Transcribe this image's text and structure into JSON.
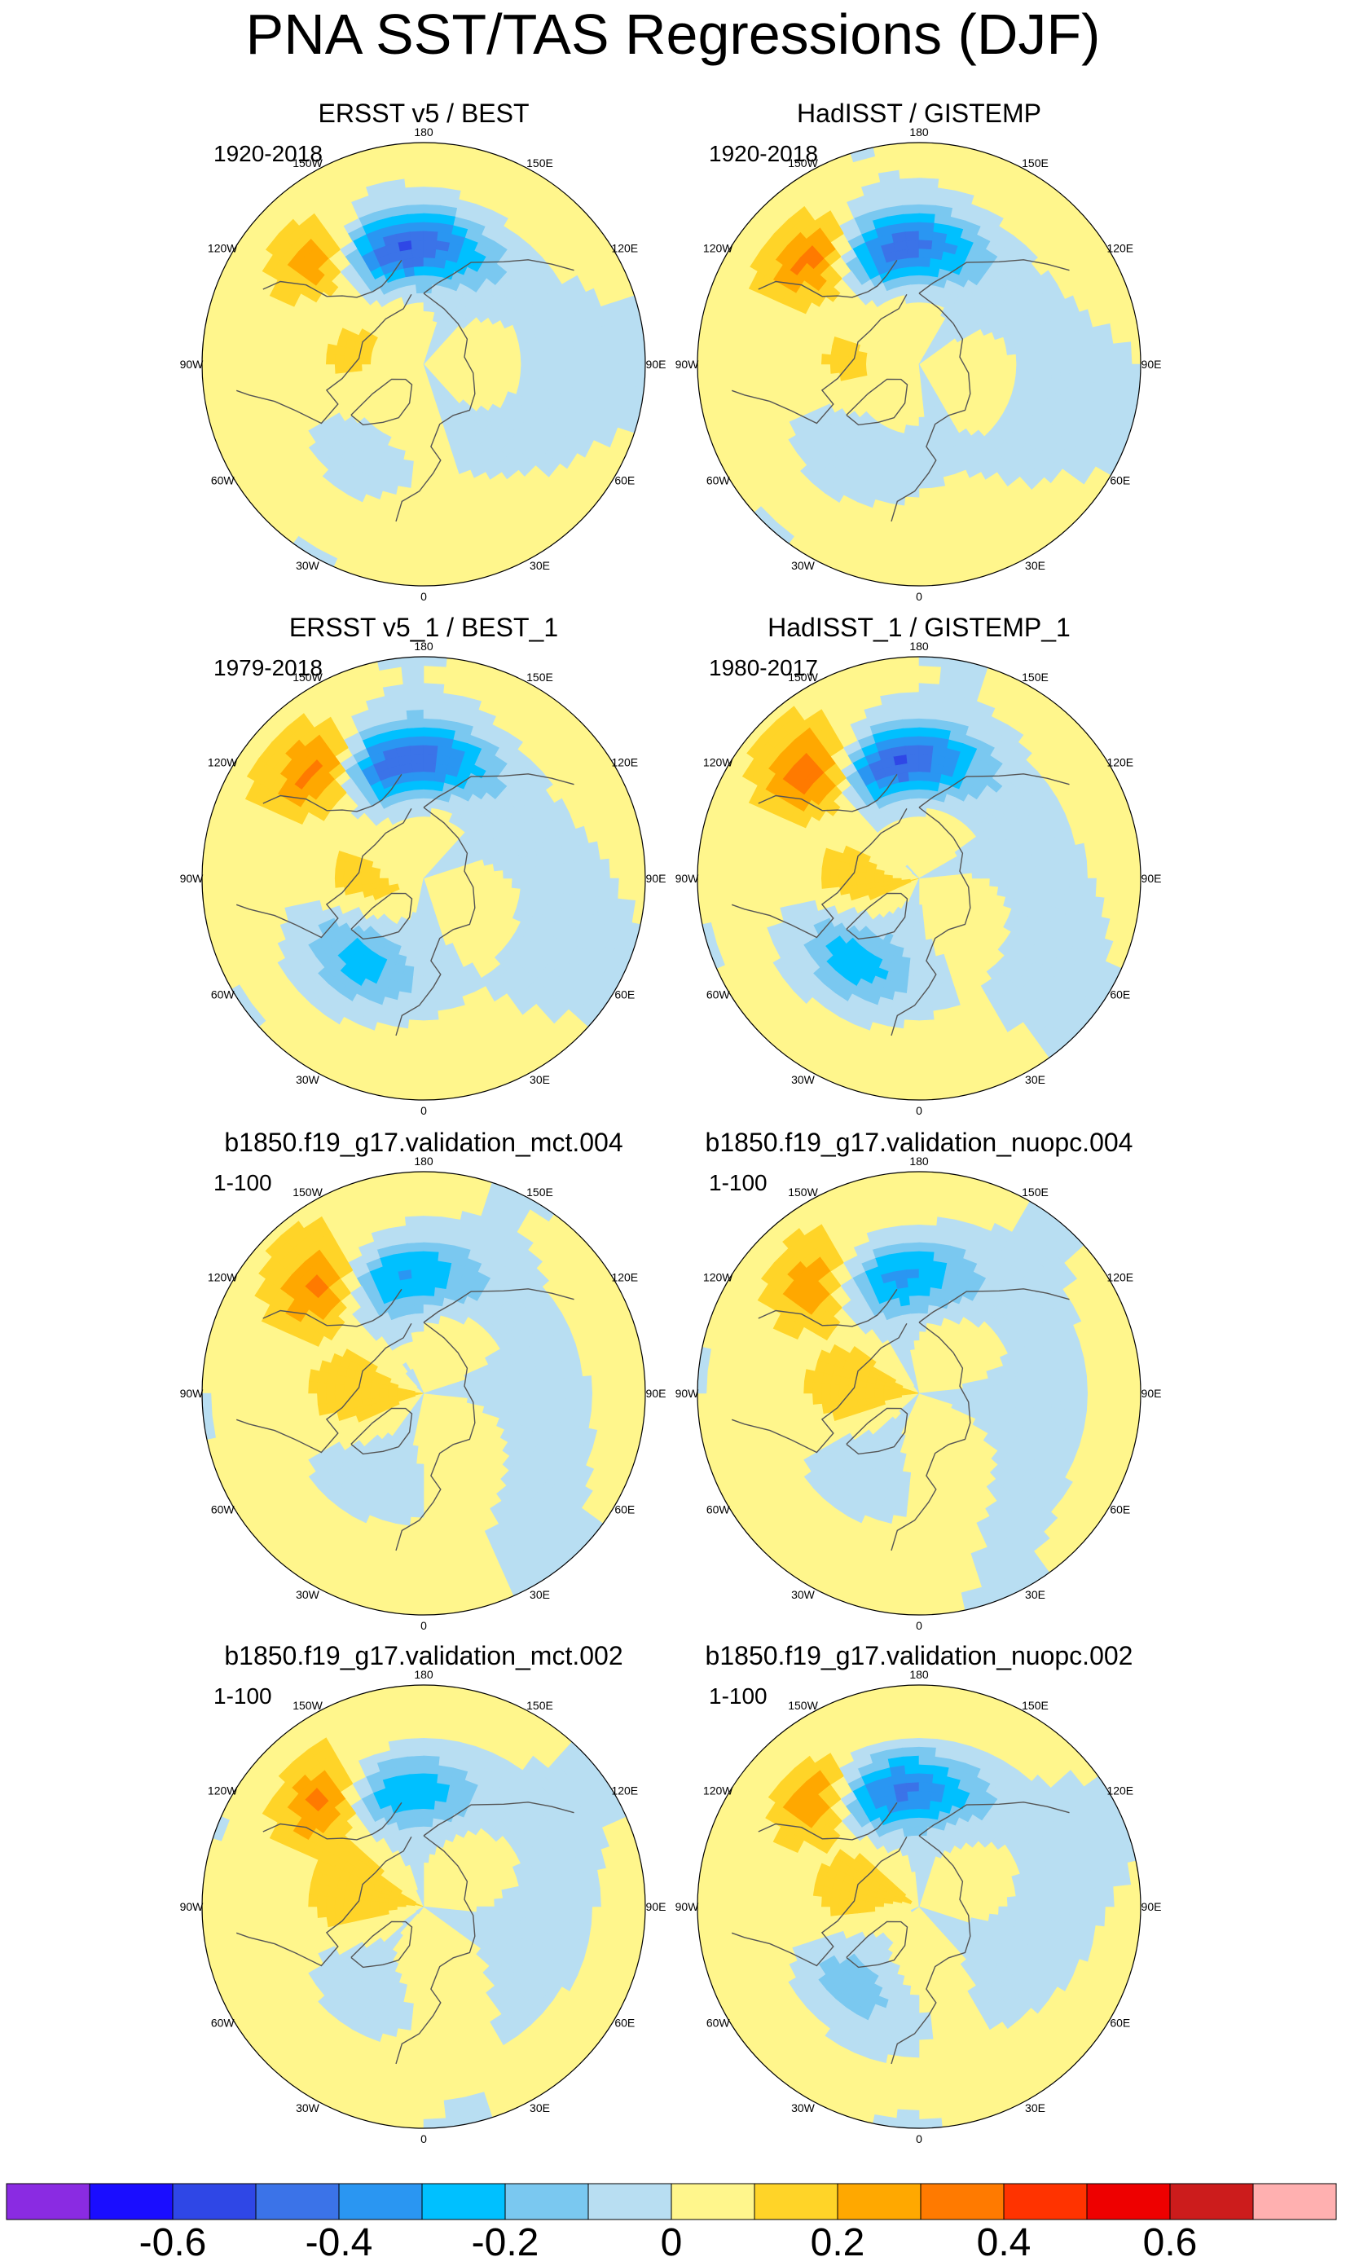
{
  "figure": {
    "title": "PNA SST/TAS Regressions (DJF)"
  },
  "chart_data": [
    {
      "type": "heatmap",
      "projection": "north-polar-stereographic",
      "title": "ERSST v5 / BEST",
      "period": "1920-2018",
      "lon_labels": [
        "180",
        "150E",
        "120E",
        "90E",
        "60E",
        "30E",
        "0",
        "30W",
        "60W",
        "90W",
        "120W",
        "150W"
      ],
      "features": {
        "aleutian_low": -0.55,
        "ne_pacific_warm": 0.35,
        "atlantic_cool": -0.1
      }
    },
    {
      "type": "heatmap",
      "projection": "north-polar-stereographic",
      "title": "HadISST / GISTEMP",
      "period": "1920-2018",
      "lon_labels": [
        "180",
        "150E",
        "120E",
        "90E",
        "60E",
        "30E",
        "0",
        "30W",
        "60W",
        "90W",
        "120W",
        "150W"
      ],
      "features": {
        "aleutian_low": -0.5,
        "ne_pacific_warm": 0.4,
        "atlantic_cool": -0.15
      }
    },
    {
      "type": "heatmap",
      "projection": "north-polar-stereographic",
      "title": "ERSST v5_1 / BEST_1",
      "period": "1979-2018",
      "lon_labels": [
        "180",
        "150E",
        "120E",
        "90E",
        "60E",
        "30E",
        "0",
        "30W",
        "60W",
        "90W",
        "120W",
        "150W"
      ],
      "features": {
        "aleutian_low": -0.55,
        "ne_pacific_warm": 0.4,
        "atlantic_cool": -0.3
      }
    },
    {
      "type": "heatmap",
      "projection": "north-polar-stereographic",
      "title": "HadISST_1 / GISTEMP_1",
      "period": "1980-2017",
      "lon_labels": [
        "180",
        "150E",
        "120E",
        "90E",
        "60E",
        "30E",
        "0",
        "30W",
        "60W",
        "90W",
        "120W",
        "150W"
      ],
      "features": {
        "aleutian_low": -0.55,
        "ne_pacific_warm": 0.45,
        "atlantic_cool": -0.3
      }
    },
    {
      "type": "heatmap",
      "projection": "north-polar-stereographic",
      "title": "b1850.f19_g17.validation_mct.004",
      "period": "1-100",
      "lon_labels": [
        "180",
        "150E",
        "120E",
        "90E",
        "60E",
        "30E",
        "0",
        "30W",
        "60W",
        "90W",
        "120W",
        "150W"
      ],
      "features": {
        "aleutian_low": -0.35,
        "ne_pacific_warm": 0.35,
        "atlantic_cool": -0.1
      }
    },
    {
      "type": "heatmap",
      "projection": "north-polar-stereographic",
      "title": "b1850.f19_g17.validation_nuopc.004",
      "period": "1-100",
      "lon_labels": [
        "180",
        "150E",
        "120E",
        "90E",
        "60E",
        "30E",
        "0",
        "30W",
        "60W",
        "90W",
        "120W",
        "150W"
      ],
      "features": {
        "aleutian_low": -0.35,
        "ne_pacific_warm": 0.3,
        "atlantic_cool": -0.1
      }
    },
    {
      "type": "heatmap",
      "projection": "north-polar-stereographic",
      "title": "b1850.f19_g17.validation_mct.002",
      "period": "1-100",
      "lon_labels": [
        "180",
        "150E",
        "120E",
        "90E",
        "60E",
        "30E",
        "0",
        "30W",
        "60W",
        "90W",
        "120W",
        "150W"
      ],
      "features": {
        "aleutian_low": -0.3,
        "ne_pacific_warm": 0.35,
        "atlantic_cool": -0.1
      }
    },
    {
      "type": "heatmap",
      "projection": "north-polar-stereographic",
      "title": "b1850.f19_g17.validation_nuopc.002",
      "period": "1-100",
      "lon_labels": [
        "180",
        "150E",
        "120E",
        "90E",
        "60E",
        "30E",
        "0",
        "30W",
        "60W",
        "90W",
        "120W",
        "150W"
      ],
      "features": {
        "aleutian_low": -0.45,
        "ne_pacific_warm": 0.35,
        "atlantic_cool": -0.2
      }
    }
  ],
  "colorbar": {
    "levels": [
      -0.7,
      -0.6,
      -0.5,
      -0.4,
      -0.3,
      -0.2,
      -0.1,
      0,
      0.1,
      0.2,
      0.3,
      0.4,
      0.5,
      0.6,
      0.7
    ],
    "colors": [
      "#8a2be2",
      "#1a0dff",
      "#2f47e6",
      "#3b73e8",
      "#2a96f2",
      "#00c0ff",
      "#7ac8f0",
      "#b8def2",
      "#fff68c",
      "#ffd428",
      "#ffa800",
      "#ff7a00",
      "#ff3300",
      "#ee0000",
      "#cc1c1c",
      "#ffb0b0"
    ],
    "tick_labels": [
      "-0.6",
      "-0.4",
      "-0.2",
      "0",
      "0.2",
      "0.4",
      "0.6"
    ],
    "tick_values": [
      -0.6,
      -0.4,
      -0.2,
      0,
      0.2,
      0.4,
      0.6
    ]
  }
}
